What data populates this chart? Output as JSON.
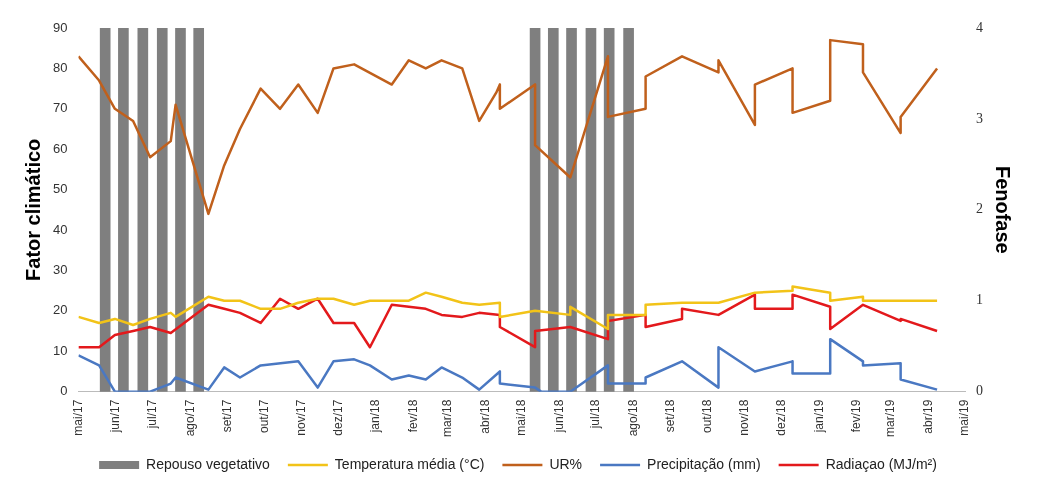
{
  "chart_data": {
    "type": "line",
    "ylabel": "Fator climático",
    "y2label": "Fenofase",
    "xlim": [
      "2017-05-01",
      "2019-05-01"
    ],
    "xticks": [
      {
        "value": "2017-05-01",
        "label": "mai/17"
      },
      {
        "value": "2017-06-01",
        "label": "jun/17"
      },
      {
        "value": "2017-07-01",
        "label": "jul/17"
      },
      {
        "value": "2017-08-01",
        "label": "ago/17"
      },
      {
        "value": "2017-09-01",
        "label": "set/17"
      },
      {
        "value": "2017-10-01",
        "label": "out/17"
      },
      {
        "value": "2017-11-01",
        "label": "nov/17"
      },
      {
        "value": "2017-12-01",
        "label": "dez/17"
      },
      {
        "value": "2018-01-01",
        "label": "jan/18"
      },
      {
        "value": "2018-02-01",
        "label": "fev/18"
      },
      {
        "value": "2018-03-01",
        "label": "mar/18"
      },
      {
        "value": "2018-04-01",
        "label": "abr/18"
      },
      {
        "value": "2018-05-01",
        "label": "mai/18"
      },
      {
        "value": "2018-06-01",
        "label": "jun/18"
      },
      {
        "value": "2018-07-01",
        "label": "jul/18"
      },
      {
        "value": "2018-08-01",
        "label": "ago/18"
      },
      {
        "value": "2018-09-01",
        "label": "set/18"
      },
      {
        "value": "2018-10-01",
        "label": "out/18"
      },
      {
        "value": "2018-11-01",
        "label": "nov/18"
      },
      {
        "value": "2018-12-01",
        "label": "dez/18"
      },
      {
        "value": "2019-01-01",
        "label": "jan/19"
      },
      {
        "value": "2019-02-01",
        "label": "fev/19"
      },
      {
        "value": "2019-03-01",
        "label": "mar/19"
      },
      {
        "value": "2019-04-01",
        "label": "abr/19"
      },
      {
        "value": "2019-05-01",
        "label": "mai/19"
      }
    ],
    "ylim": [
      0,
      90
    ],
    "yticks": [
      0,
      10,
      20,
      30,
      40,
      50,
      60,
      70,
      80,
      90
    ],
    "y2lim": [
      0,
      4
    ],
    "y2ticks": [
      0,
      1,
      2,
      3,
      4
    ],
    "grid": false,
    "legend": "bottom",
    "marker": "none",
    "line_style": "solid",
    "series": [
      {
        "name": "Repouso vegetativo",
        "type": "bar",
        "axis": "y2",
        "color": "#7f7f7f",
        "x": [
          "2017-05-23",
          "2017-06-07",
          "2017-06-23",
          "2017-07-09",
          "2017-07-24",
          "2017-08-08",
          "2018-05-12",
          "2018-05-27",
          "2018-06-11",
          "2018-06-27",
          "2018-07-12",
          "2018-07-28"
        ],
        "values": [
          4,
          4,
          4,
          4,
          4,
          4,
          4,
          4,
          4,
          4,
          4,
          4
        ]
      },
      {
        "name": "Temperatura média (°C)",
        "color": "#f2c318",
        "x": [
          "2017-05-01",
          "2017-05-18",
          "2017-05-31",
          "2017-06-15",
          "2017-06-29",
          "2017-07-16",
          "2017-07-20",
          "2017-08-16",
          "2017-08-29",
          "2017-09-11",
          "2017-09-28",
          "2017-10-14",
          "2017-10-29",
          "2017-11-14",
          "2017-11-27",
          "2017-12-14",
          "2017-12-27",
          "2018-01-11",
          "2018-01-28",
          "2018-02-11",
          "2018-02-24",
          "2018-03-13",
          "2018-03-27",
          "2018-04-13",
          "2018-04-13",
          "2018-05-12",
          "2018-06-10",
          "2018-06-10",
          "2018-07-11",
          "2018-07-11",
          "2018-08-11",
          "2018-08-11",
          "2018-09-10",
          "2018-10-10",
          "2018-11-09",
          "2018-12-10",
          "2018-12-10",
          "2019-01-10",
          "2019-01-10",
          "2019-02-06",
          "2019-02-06",
          "2019-03-09",
          "2019-04-08"
        ],
        "values": [
          18.5,
          17,
          18,
          16.5,
          18,
          19.5,
          18.5,
          23.5,
          22.5,
          22.5,
          20.5,
          20.5,
          22,
          23,
          23,
          21.5,
          22.5,
          22.5,
          22.5,
          24.5,
          23.5,
          22,
          21.5,
          22,
          18.5,
          20,
          19,
          21,
          15.5,
          19,
          19,
          21.5,
          22,
          22,
          24.5,
          25,
          26,
          24.5,
          22.5,
          23.5,
          22.5,
          22.5,
          22.5
        ]
      },
      {
        "name": "UR%",
        "color": "#c0601c",
        "x": [
          "2017-05-01",
          "2017-05-18",
          "2017-05-31",
          "2017-06-15",
          "2017-06-29",
          "2017-07-16",
          "2017-07-20",
          "2017-08-16",
          "2017-08-29",
          "2017-09-11",
          "2017-09-28",
          "2017-10-14",
          "2017-10-29",
          "2017-11-14",
          "2017-11-27",
          "2017-12-14",
          "2018-01-14",
          "2018-01-28",
          "2018-02-11",
          "2018-02-24",
          "2018-03-13",
          "2018-03-27",
          "2018-04-10",
          "2018-04-13",
          "2018-04-13",
          "2018-05-12",
          "2018-05-12",
          "2018-06-10",
          "2018-07-11",
          "2018-07-11",
          "2018-08-11",
          "2018-08-11",
          "2018-09-10",
          "2018-10-10",
          "2018-10-10",
          "2018-11-09",
          "2018-11-09",
          "2018-12-10",
          "2018-12-10",
          "2019-01-10",
          "2019-01-10",
          "2019-02-06",
          "2019-02-06",
          "2019-03-09",
          "2019-03-09",
          "2019-04-08"
        ],
        "values": [
          83,
          77,
          70,
          67,
          58,
          62,
          71,
          44,
          56,
          65,
          75,
          70,
          76,
          69,
          80,
          81,
          76,
          82,
          80,
          82,
          80,
          67,
          74,
          76,
          70,
          76,
          61,
          53,
          83,
          68,
          70,
          78,
          83,
          79,
          82,
          66,
          76,
          80,
          69,
          72,
          87,
          86,
          79,
          64,
          68,
          80
        ]
      },
      {
        "name": "Precipitação (mm)",
        "color": "#4a78c2",
        "x": [
          "2017-05-01",
          "2017-05-18",
          "2017-05-31",
          "2017-06-29",
          "2017-07-16",
          "2017-07-20",
          "2017-08-16",
          "2017-08-29",
          "2017-09-11",
          "2017-09-28",
          "2017-10-29",
          "2017-11-14",
          "2017-11-27",
          "2017-12-14",
          "2017-12-27",
          "2018-01-14",
          "2018-01-28",
          "2018-02-11",
          "2018-02-24",
          "2018-03-13",
          "2018-03-27",
          "2018-04-13",
          "2018-04-13",
          "2018-05-12",
          "2018-05-17",
          "2018-06-10",
          "2018-07-11",
          "2018-07-11",
          "2018-08-11",
          "2018-08-11",
          "2018-09-10",
          "2018-10-10",
          "2018-10-10",
          "2018-11-09",
          "2018-12-10",
          "2018-12-10",
          "2019-01-10",
          "2019-01-10",
          "2019-02-06",
          "2019-02-06",
          "2019-03-09",
          "2019-03-09",
          "2019-04-08"
        ],
        "values": [
          9,
          6.5,
          0,
          0,
          2,
          3.5,
          0.5,
          6,
          3.5,
          6.5,
          7.5,
          1,
          7.5,
          8,
          6.5,
          3,
          4,
          3,
          6,
          3.5,
          0.5,
          5,
          2,
          1,
          0,
          0,
          6.5,
          2,
          2,
          3.5,
          7.5,
          1,
          11,
          5,
          7.5,
          4.5,
          4.5,
          13,
          7.5,
          6.5,
          7,
          3,
          0.5
        ]
      },
      {
        "name": "Radiaçao (MJ/m²)",
        "color": "#e3191c",
        "x": [
          "2017-05-01",
          "2017-05-18",
          "2017-05-31",
          "2017-06-15",
          "2017-06-29",
          "2017-07-16",
          "2017-08-16",
          "2017-08-29",
          "2017-09-11",
          "2017-09-28",
          "2017-10-14",
          "2017-10-29",
          "2017-11-14",
          "2017-11-27",
          "2017-12-14",
          "2017-12-27",
          "2018-01-14",
          "2018-02-11",
          "2018-02-24",
          "2018-03-13",
          "2018-03-27",
          "2018-04-13",
          "2018-04-13",
          "2018-05-12",
          "2018-05-12",
          "2018-06-10",
          "2018-07-11",
          "2018-07-11",
          "2018-08-11",
          "2018-08-11",
          "2018-09-10",
          "2018-09-10",
          "2018-10-10",
          "2018-11-09",
          "2018-11-09",
          "2018-12-10",
          "2018-12-10",
          "2019-01-10",
          "2019-01-10",
          "2019-02-06",
          "2019-03-09",
          "2019-03-09",
          "2019-04-08"
        ],
        "values": [
          11,
          11,
          14,
          15,
          16,
          14.5,
          21.5,
          20.5,
          19.5,
          17,
          23,
          20.5,
          23,
          17,
          17,
          11,
          21.5,
          20.5,
          19,
          18.5,
          19.5,
          19,
          16,
          11,
          15,
          16,
          13,
          17.5,
          19,
          16,
          18,
          20.5,
          19,
          24,
          20.5,
          20.5,
          24,
          21,
          15.5,
          21.5,
          17.5,
          18,
          15
        ]
      }
    ]
  }
}
